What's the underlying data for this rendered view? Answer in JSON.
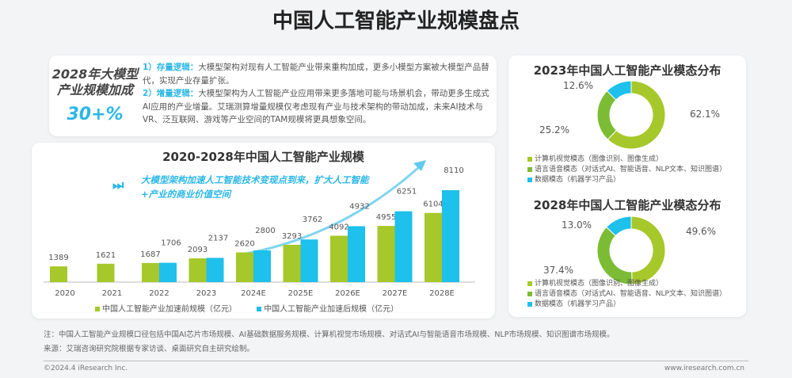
{
  "page": {
    "title": "中国人工智能产业规模盘点"
  },
  "summary": {
    "headline_line1": "2028年大模型",
    "headline_line2": "产业规模加成",
    "percent": "30+%",
    "points": [
      {
        "label": "1）存量逻辑：",
        "text": "大模型架构对现有人工智能产业带来重构加成，更多小模型方案被大模型产品替代，实现产业存量扩张。"
      },
      {
        "label": "2）增量逻辑：",
        "text": "大模型架构为人工智能产业应用带来更多落地可能与场景机会，带动更多生成式AI应用的产业增量。艾瑞测算增量规模仅考虑现有产业与技术架构的带动加成，未来AI技术与VR、泛互联网、游戏等产业空间的TAM规模将更具想象空间。"
      }
    ]
  },
  "callout": {
    "icon": "fast-forward-icon",
    "text": "大模型架构加速人工智能技术变现点到来，扩大人工智能+产业的商业价值空间"
  },
  "chart_data": [
    {
      "type": "bar",
      "title": "2020-2028年中国人工智能产业规模",
      "categories": [
        "2020",
        "2021",
        "2022",
        "2023",
        "2024E",
        "2025E",
        "2026E",
        "2027E",
        "2028E"
      ],
      "series": [
        {
          "name": "中国人工智能产业加速前规模（亿元）",
          "color": "#a6c82a",
          "values": [
            1389,
            1621,
            1687,
            2093,
            2620,
            3293,
            4092,
            4955,
            6104
          ]
        },
        {
          "name": "中国人工智能产业加速后规模（亿元）",
          "color": "#1ec0ec",
          "values": [
            null,
            null,
            1706,
            2137,
            2800,
            3762,
            4932,
            6251,
            8110
          ]
        }
      ],
      "legend": "bottom",
      "grid": false,
      "ylim": [
        0,
        8110
      ]
    },
    {
      "type": "pie",
      "title": "2023年中国人工智能产业模态分布",
      "labels": [
        "计算机视觉模态（图像识别、图像生成）",
        "语言语音模态（对话式AI、智能语音、NLP文本、知识图谱）",
        "数据模态（机器学习产品）"
      ],
      "values": [
        62.1,
        25.2,
        12.6
      ],
      "value_labels": [
        "62.1%",
        "25.2%",
        "12.6%"
      ],
      "colors": [
        "#a6c82a",
        "#7cbc34",
        "#1ec0ec"
      ],
      "legend": "bottom"
    },
    {
      "type": "pie",
      "title": "2028年中国人工智能产业模态分布",
      "labels": [
        "计算机视觉模态（图像识别、图像生成）",
        "语言语音模态（对话式AI、智能语音、NLP文本、知识图谱）",
        "数据模态（机器学习产品）"
      ],
      "values": [
        49.6,
        37.4,
        13.0
      ],
      "value_labels": [
        "49.6%",
        "37.4%",
        "13.0%"
      ],
      "colors": [
        "#a6c82a",
        "#7cbc34",
        "#1ec0ec"
      ],
      "legend": "bottom"
    }
  ],
  "footer": {
    "note": "注：中国人工智能产业规模口径包括中国AI芯片市场规模、AI基础数据服务规模、计算机视觉市场规模、对话式AI与智能语音市场规模、NLP市场规模、知识图谱市场规模。",
    "source": "来源：艾瑞咨询研究院根据专家访谈、桌面研究自主研究绘制。",
    "copyright": "©2024.4 iResearch Inc.",
    "website": "www.iresearch.com.cn"
  }
}
